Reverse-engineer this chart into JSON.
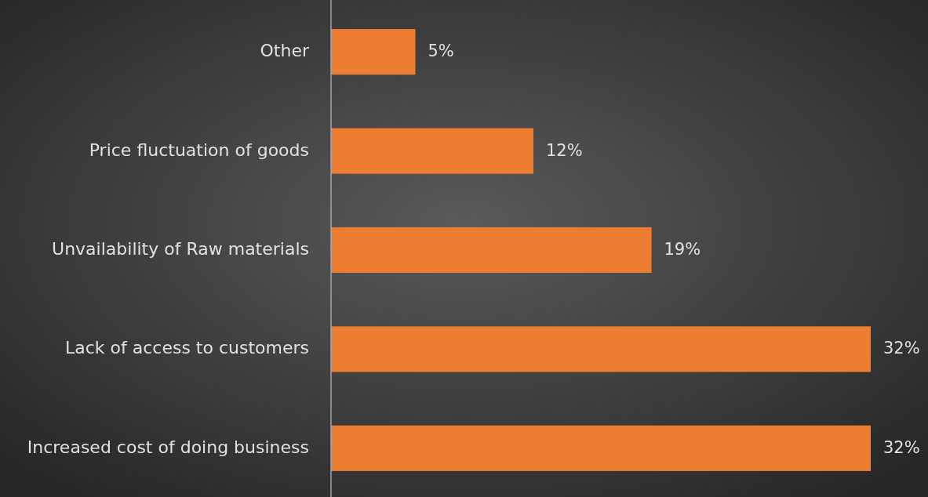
{
  "chart_data": {
    "type": "bar",
    "orientation": "horizontal",
    "categories": [
      "Other",
      "Price fluctuation of goods",
      "Unvailability of Raw materials",
      "Lack of access to customers",
      "Increased cost of doing business"
    ],
    "values": [
      5,
      12,
      19,
      32,
      32
    ],
    "value_labels": [
      "5%",
      "12%",
      "19%",
      "32%",
      "32%"
    ],
    "color": "#ed7d31",
    "grid": false
  }
}
